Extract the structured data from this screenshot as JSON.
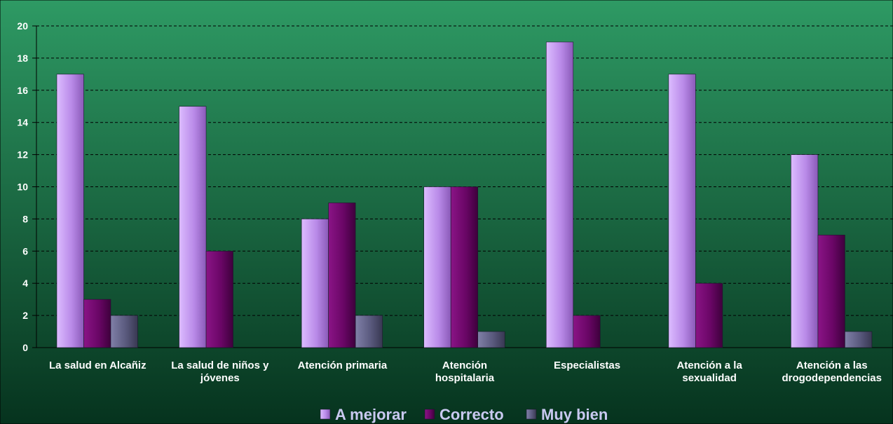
{
  "chart_data": {
    "type": "bar",
    "categories": [
      [
        "La salud en Alcañiz"
      ],
      [
        "La salud de niños y",
        "jóvenes"
      ],
      [
        "Atención primaria"
      ],
      [
        "Atención",
        "hospitalaria"
      ],
      [
        "Especialistas"
      ],
      [
        "Atención a la",
        "sexualidad"
      ],
      [
        "Atención a las",
        "drogodependencias"
      ]
    ],
    "series": [
      {
        "name": "A mejorar",
        "values": [
          17,
          15,
          8,
          10,
          19,
          17,
          12
        ]
      },
      {
        "name": "Correcto",
        "values": [
          3,
          6,
          9,
          10,
          2,
          4,
          7
        ]
      },
      {
        "name": "Muy bien",
        "values": [
          2,
          0,
          2,
          1,
          0,
          0,
          1
        ]
      }
    ],
    "ylim": [
      0,
      20
    ],
    "yticks": [
      0,
      2,
      4,
      6,
      8,
      10,
      12,
      14,
      16,
      18,
      20
    ],
    "grid": true,
    "legend_position": "bottom",
    "colors": {
      "background_top": "#2e9a64",
      "background_bottom": "#06331e",
      "series": [
        "#c9a2f0",
        "#6e0a6a",
        "#5a5a7e"
      ]
    }
  }
}
